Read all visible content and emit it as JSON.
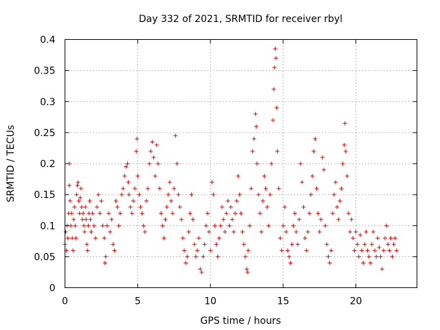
{
  "chart_data": {
    "type": "scatter",
    "title": "Day 332 of 2021, SRMTID for receiver rbyl",
    "xlabel": "GPS time / hours",
    "ylabel": "SRMTID / TECUs",
    "xlim": [
      0,
      24.2
    ],
    "ylim": [
      0,
      0.4
    ],
    "x_ticks": [
      0,
      5,
      10,
      15,
      20
    ],
    "x_tick_labels": [
      "0",
      "5",
      "10",
      "15",
      "20"
    ],
    "y_ticks": [
      0,
      0.05,
      0.1,
      0.15,
      0.2,
      0.25,
      0.3,
      0.35,
      0.4
    ],
    "y_tick_labels": [
      "0",
      "0.05",
      "0.1",
      "0.15",
      "0.2",
      "0.25",
      "0.3",
      "0.35",
      "0.4"
    ],
    "grid": true,
    "marker": "plus",
    "color": "#ee0000",
    "series": [
      {
        "name": "SRMTID",
        "points": [
          [
            0.0,
            0.07
          ],
          [
            0.05,
            0.09
          ],
          [
            0.1,
            0.06
          ],
          [
            0.15,
            0.1
          ],
          [
            0.2,
            0.08
          ],
          [
            0.25,
            0.12
          ],
          [
            0.3,
            0.2
          ],
          [
            0.3,
            0.165
          ],
          [
            0.35,
            0.14
          ],
          [
            0.4,
            0.1
          ],
          [
            0.45,
            0.12
          ],
          [
            0.5,
            0.08
          ],
          [
            0.55,
            0.06
          ],
          [
            0.6,
            0.11
          ],
          [
            0.65,
            0.13
          ],
          [
            0.7,
            0.1
          ],
          [
            0.75,
            0.08
          ],
          [
            0.8,
            0.15
          ],
          [
            0.85,
            0.165
          ],
          [
            0.9,
            0.17
          ],
          [
            0.95,
            0.14
          ],
          [
            1.0,
            0.12
          ],
          [
            1.05,
            0.145
          ],
          [
            1.1,
            0.16
          ],
          [
            1.15,
            0.13
          ],
          [
            1.2,
            0.11
          ],
          [
            1.25,
            0.12
          ],
          [
            1.3,
            0.1
          ],
          [
            1.35,
            0.09
          ],
          [
            1.4,
            0.13
          ],
          [
            1.45,
            0.11
          ],
          [
            1.5,
            0.07
          ],
          [
            1.55,
            0.06
          ],
          [
            1.6,
            0.1
          ],
          [
            1.65,
            0.12
          ],
          [
            1.7,
            0.14
          ],
          [
            1.75,
            0.11
          ],
          [
            1.8,
            0.09
          ],
          [
            1.9,
            0.12
          ],
          [
            2.0,
            0.1
          ],
          [
            2.1,
            0.08
          ],
          [
            2.2,
            0.13
          ],
          [
            2.3,
            0.15
          ],
          [
            2.4,
            0.12
          ],
          [
            2.5,
            0.14
          ],
          [
            2.6,
            0.1
          ],
          [
            2.7,
            0.08
          ],
          [
            2.75,
            0.04
          ],
          [
            2.8,
            0.05
          ],
          [
            2.9,
            0.1
          ],
          [
            3.0,
            0.12
          ],
          [
            3.1,
            0.09
          ],
          [
            3.2,
            0.11
          ],
          [
            3.3,
            0.07
          ],
          [
            3.4,
            0.06
          ],
          [
            3.5,
            0.14
          ],
          [
            3.6,
            0.13
          ],
          [
            3.7,
            0.1
          ],
          [
            3.8,
            0.12
          ],
          [
            3.9,
            0.15
          ],
          [
            4.0,
            0.16
          ],
          [
            4.1,
            0.18
          ],
          [
            4.2,
            0.195
          ],
          [
            4.3,
            0.2
          ],
          [
            4.35,
            0.17
          ],
          [
            4.4,
            0.15
          ],
          [
            4.5,
            0.13
          ],
          [
            4.6,
            0.12
          ],
          [
            4.7,
            0.14
          ],
          [
            4.8,
            0.16
          ],
          [
            4.9,
            0.22
          ],
          [
            4.95,
            0.24
          ],
          [
            5.0,
            0.18
          ],
          [
            5.1,
            0.15
          ],
          [
            5.2,
            0.13
          ],
          [
            5.3,
            0.12
          ],
          [
            5.4,
            0.1
          ],
          [
            5.5,
            0.09
          ],
          [
            5.6,
            0.14
          ],
          [
            5.7,
            0.16
          ],
          [
            5.8,
            0.2
          ],
          [
            5.9,
            0.22
          ],
          [
            6.0,
            0.235
          ],
          [
            6.1,
            0.21
          ],
          [
            6.2,
            0.18
          ],
          [
            6.3,
            0.23
          ],
          [
            6.4,
            0.2
          ],
          [
            6.5,
            0.16
          ],
          [
            6.6,
            0.12
          ],
          [
            6.7,
            0.1
          ],
          [
            6.8,
            0.08
          ],
          [
            6.9,
            0.11
          ],
          [
            7.0,
            0.13
          ],
          [
            7.1,
            0.15
          ],
          [
            7.2,
            0.17
          ],
          [
            7.3,
            0.14
          ],
          [
            7.4,
            0.12
          ],
          [
            7.5,
            0.16
          ],
          [
            7.6,
            0.245
          ],
          [
            7.7,
            0.2
          ],
          [
            7.8,
            0.15
          ],
          [
            7.9,
            0.13
          ],
          [
            8.0,
            0.11
          ],
          [
            8.1,
            0.08
          ],
          [
            8.2,
            0.06
          ],
          [
            8.3,
            0.04
          ],
          [
            8.4,
            0.05
          ],
          [
            8.5,
            0.09
          ],
          [
            8.6,
            0.12
          ],
          [
            8.7,
            0.15
          ],
          [
            8.8,
            0.11
          ],
          [
            8.9,
            0.07
          ],
          [
            9.0,
            0.05
          ],
          [
            9.1,
            0.06
          ],
          [
            9.2,
            0.08
          ],
          [
            9.3,
            0.03
          ],
          [
            9.4,
            0.025
          ],
          [
            9.5,
            0.05
          ],
          [
            9.6,
            0.07
          ],
          [
            9.7,
            0.1
          ],
          [
            9.8,
            0.12
          ],
          [
            9.9,
            0.09
          ],
          [
            10.0,
            0.06
          ],
          [
            10.1,
            0.17
          ],
          [
            10.2,
            0.15
          ],
          [
            10.3,
            0.1
          ],
          [
            10.4,
            0.07
          ],
          [
            10.5,
            0.05
          ],
          [
            10.6,
            0.08
          ],
          [
            10.7,
            0.1
          ],
          [
            10.8,
            0.13
          ],
          [
            10.9,
            0.11
          ],
          [
            11.0,
            0.09
          ],
          [
            11.1,
            0.12
          ],
          [
            11.2,
            0.14
          ],
          [
            11.3,
            0.1
          ],
          [
            11.4,
            0.13
          ],
          [
            11.5,
            0.11
          ],
          [
            11.6,
            0.09
          ],
          [
            11.7,
            0.12
          ],
          [
            11.8,
            0.14
          ],
          [
            11.9,
            0.18
          ],
          [
            12.0,
            0.15
          ],
          [
            12.1,
            0.12
          ],
          [
            12.2,
            0.09
          ],
          [
            12.3,
            0.07
          ],
          [
            12.4,
            0.05
          ],
          [
            12.5,
            0.03
          ],
          [
            12.55,
            0.025
          ],
          [
            12.6,
            0.06
          ],
          [
            12.7,
            0.1
          ],
          [
            12.8,
            0.16
          ],
          [
            12.9,
            0.22
          ],
          [
            13.0,
            0.24
          ],
          [
            13.1,
            0.28
          ],
          [
            13.15,
            0.26
          ],
          [
            13.2,
            0.2
          ],
          [
            13.3,
            0.15
          ],
          [
            13.4,
            0.12
          ],
          [
            13.5,
            0.09
          ],
          [
            13.6,
            0.14
          ],
          [
            13.7,
            0.18
          ],
          [
            13.8,
            0.16
          ],
          [
            13.9,
            0.13
          ],
          [
            14.0,
            0.1
          ],
          [
            14.1,
            0.15
          ],
          [
            14.2,
            0.2
          ],
          [
            14.3,
            0.27
          ],
          [
            14.35,
            0.32
          ],
          [
            14.4,
            0.355
          ],
          [
            14.45,
            0.385
          ],
          [
            14.5,
            0.37
          ],
          [
            14.55,
            0.29
          ],
          [
            14.6,
            0.22
          ],
          [
            14.7,
            0.16
          ],
          [
            14.8,
            0.08
          ],
          [
            14.9,
            0.06
          ],
          [
            15.0,
            0.1
          ],
          [
            15.1,
            0.13
          ],
          [
            15.2,
            0.09
          ],
          [
            15.3,
            0.06
          ],
          [
            15.4,
            0.05
          ],
          [
            15.5,
            0.04
          ],
          [
            15.6,
            0.07
          ],
          [
            15.7,
            0.1
          ],
          [
            15.8,
            0.12
          ],
          [
            15.9,
            0.09
          ],
          [
            16.0,
            0.07
          ],
          [
            16.1,
            0.11
          ],
          [
            16.2,
            0.2
          ],
          [
            16.3,
            0.17
          ],
          [
            16.4,
            0.13
          ],
          [
            16.5,
            0.08
          ],
          [
            16.6,
            0.06
          ],
          [
            16.7,
            0.09
          ],
          [
            16.8,
            0.12
          ],
          [
            16.9,
            0.15
          ],
          [
            17.0,
            0.18
          ],
          [
            17.1,
            0.22
          ],
          [
            17.2,
            0.24
          ],
          [
            17.3,
            0.16
          ],
          [
            17.4,
            0.12
          ],
          [
            17.5,
            0.09
          ],
          [
            17.6,
            0.11
          ],
          [
            17.7,
            0.21
          ],
          [
            17.8,
            0.19
          ],
          [
            17.9,
            0.1
          ],
          [
            18.0,
            0.07
          ],
          [
            18.1,
            0.05
          ],
          [
            18.2,
            0.04
          ],
          [
            18.3,
            0.06
          ],
          [
            18.4,
            0.12
          ],
          [
            18.5,
            0.15
          ],
          [
            18.6,
            0.17
          ],
          [
            18.7,
            0.13
          ],
          [
            18.8,
            0.11
          ],
          [
            18.9,
            0.14
          ],
          [
            19.0,
            0.16
          ],
          [
            19.1,
            0.2
          ],
          [
            19.2,
            0.23
          ],
          [
            19.25,
            0.265
          ],
          [
            19.3,
            0.22
          ],
          [
            19.4,
            0.18
          ],
          [
            19.5,
            0.12
          ],
          [
            19.6,
            0.09
          ],
          [
            19.7,
            0.11
          ],
          [
            19.8,
            0.08
          ],
          [
            19.9,
            0.06
          ],
          [
            20.0,
            0.09
          ],
          [
            20.1,
            0.07
          ],
          [
            20.2,
            0.05
          ],
          [
            20.3,
            0.085
          ],
          [
            20.4,
            0.06
          ],
          [
            20.5,
            0.04
          ],
          [
            20.6,
            0.07
          ],
          [
            20.7,
            0.09
          ],
          [
            20.8,
            0.06
          ],
          [
            20.9,
            0.05
          ],
          [
            21.0,
            0.04
          ],
          [
            21.1,
            0.07
          ],
          [
            21.2,
            0.09
          ],
          [
            21.3,
            0.06
          ],
          [
            21.4,
            0.05
          ],
          [
            21.5,
            0.08
          ],
          [
            21.6,
            0.065
          ],
          [
            21.7,
            0.05
          ],
          [
            21.8,
            0.03
          ],
          [
            21.9,
            0.06
          ],
          [
            22.0,
            0.08
          ],
          [
            22.1,
            0.1
          ],
          [
            22.2,
            0.07
          ],
          [
            22.3,
            0.06
          ],
          [
            22.4,
            0.08
          ],
          [
            22.5,
            0.05
          ],
          [
            22.6,
            0.07
          ],
          [
            22.7,
            0.08
          ],
          [
            22.8,
            0.06
          ]
        ]
      }
    ]
  }
}
